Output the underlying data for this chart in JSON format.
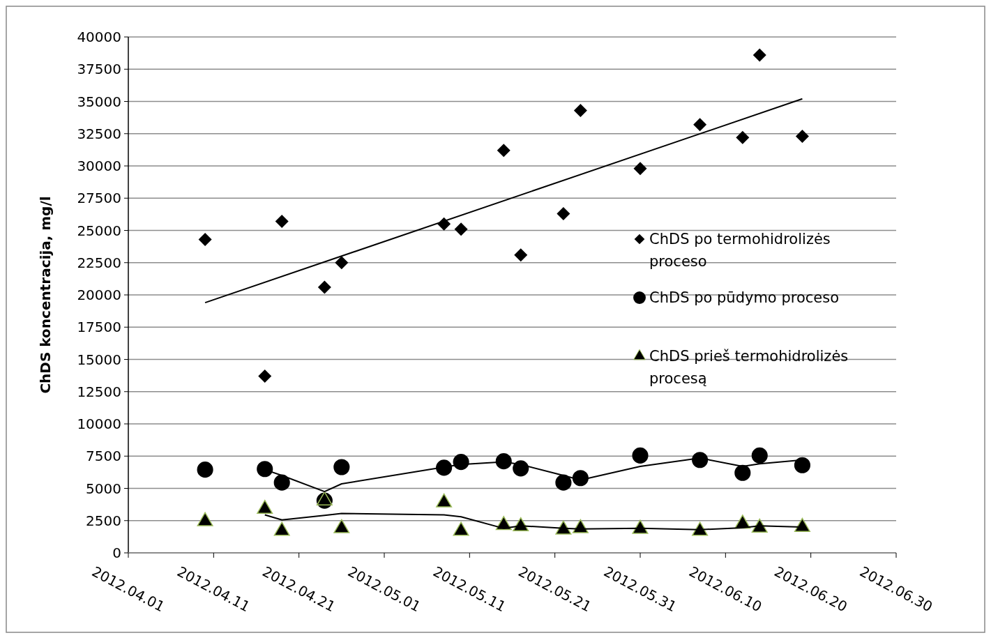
{
  "chart_data": {
    "type": "scatter",
    "ylabel": "ChDS koncentracija, mg/l",
    "xlim": [
      "2012-04-01",
      "2012-06-30"
    ],
    "xticks": [
      {
        "value": "2012-04-01",
        "label": "2012.04.01"
      },
      {
        "value": "2012-04-11",
        "label": "2012.04.11"
      },
      {
        "value": "2012-04-21",
        "label": "2012.04.21"
      },
      {
        "value": "2012-05-01",
        "label": "2012.05.01"
      },
      {
        "value": "2012-05-11",
        "label": "2012.05.11"
      },
      {
        "value": "2012-05-21",
        "label": "2012.05.21"
      },
      {
        "value": "2012-05-31",
        "label": "2012.05.31"
      },
      {
        "value": "2012-06-10",
        "label": "2012.06.10"
      },
      {
        "value": "2012-06-20",
        "label": "2012.06.20"
      },
      {
        "value": "2012-06-30",
        "label": "2012.06.30"
      }
    ],
    "ylim": [
      0,
      40000
    ],
    "yticks": [
      0,
      2500,
      5000,
      7500,
      10000,
      12500,
      15000,
      17500,
      20000,
      22500,
      25000,
      27500,
      30000,
      32500,
      35000,
      37500,
      40000
    ],
    "grid": "y",
    "legend": "right",
    "series": [
      {
        "name": "ChDS po termohidrolizės proceso",
        "type": "scatter",
        "marker": "diamond",
        "color": "#000000",
        "x": [
          "2012-04-10",
          "2012-04-17",
          "2012-04-19",
          "2012-04-24",
          "2012-04-26",
          "2012-05-08",
          "2012-05-10",
          "2012-05-15",
          "2012-05-17",
          "2012-05-22",
          "2012-05-24",
          "2012-05-31",
          "2012-06-07",
          "2012-06-12",
          "2012-06-14",
          "2012-06-19"
        ],
        "values": [
          24300,
          13700,
          25700,
          20600,
          22500,
          25500,
          25100,
          31200,
          23100,
          26300,
          34300,
          29800,
          33200,
          32200,
          38600,
          32300
        ]
      },
      {
        "name": "ChDS po pūdymo proceso",
        "type": "scatter",
        "marker": "circle",
        "color": "#000000",
        "x": [
          "2012-04-10",
          "2012-04-17",
          "2012-04-19",
          "2012-04-24",
          "2012-04-26",
          "2012-05-08",
          "2012-05-10",
          "2012-05-15",
          "2012-05-17",
          "2012-05-22",
          "2012-05-24",
          "2012-05-31",
          "2012-06-07",
          "2012-06-12",
          "2012-06-14",
          "2012-06-19"
        ],
        "values": [
          6450,
          6500,
          5450,
          4050,
          6650,
          6600,
          7050,
          7100,
          6550,
          5450,
          5800,
          7550,
          7200,
          6200,
          7550,
          6800
        ]
      },
      {
        "name": "ChDS prieš termohidrolizės procesą",
        "type": "scatter",
        "marker": "triangle",
        "color": "#000000",
        "x": [
          "2012-04-10",
          "2012-04-17",
          "2012-04-19",
          "2012-04-24",
          "2012-04-26",
          "2012-05-08",
          "2012-05-10",
          "2012-05-15",
          "2012-05-17",
          "2012-05-22",
          "2012-05-24",
          "2012-05-31",
          "2012-06-07",
          "2012-06-12",
          "2012-06-14",
          "2012-06-19"
        ],
        "values": [
          2450,
          3400,
          1700,
          4050,
          1900,
          3900,
          1700,
          2150,
          2050,
          1800,
          1900,
          1850,
          1700,
          2250,
          1950,
          2000
        ]
      },
      {
        "type": "line",
        "marker": "none",
        "color": "#000000",
        "x": [
          "2012-04-10",
          "2012-06-19"
        ],
        "values": [
          19400,
          35200
        ]
      },
      {
        "type": "line",
        "marker": "none",
        "color": "#000000",
        "x": [
          "2012-04-17",
          "2012-04-19",
          "2012-04-24",
          "2012-04-26",
          "2012-05-08",
          "2012-05-10",
          "2012-05-15",
          "2012-05-17",
          "2012-05-22",
          "2012-05-24",
          "2012-05-31",
          "2012-06-07",
          "2012-06-12",
          "2012-06-14",
          "2012-06-19"
        ],
        "values": [
          6450,
          6000,
          4750,
          5350,
          6650,
          6850,
          7050,
          6850,
          6000,
          5650,
          6700,
          7350,
          6700,
          6900,
          7200
        ]
      },
      {
        "type": "line",
        "marker": "none",
        "color": "#000000",
        "x": [
          "2012-04-17",
          "2012-04-19",
          "2012-04-24",
          "2012-04-26",
          "2012-05-08",
          "2012-05-10",
          "2012-05-15",
          "2012-05-17",
          "2012-05-22",
          "2012-05-24",
          "2012-05-31",
          "2012-06-07",
          "2012-06-12",
          "2012-06-14",
          "2012-06-19"
        ],
        "values": [
          2950,
          2550,
          2900,
          3050,
          2950,
          2800,
          1900,
          2100,
          1900,
          1850,
          1900,
          1800,
          1950,
          2100,
          2000
        ]
      }
    ]
  }
}
